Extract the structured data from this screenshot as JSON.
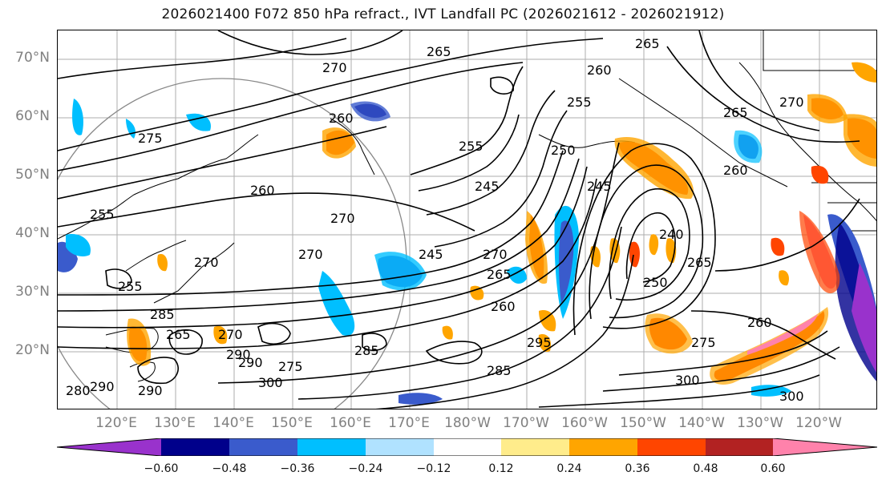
{
  "title": "2026021400 F072 850 hPa refract., IVT Landfall PC (2026021612 - 2026021912)",
  "lat_labels": [
    "70°N",
    "60°N",
    "50°N",
    "40°N",
    "30°N",
    "20°N"
  ],
  "lon_labels": [
    "120°E",
    "130°E",
    "140°E",
    "150°E",
    "160°E",
    "170°E",
    "180°W",
    "170°W",
    "160°W",
    "150°W",
    "140°W",
    "130°W",
    "120°W"
  ],
  "contour_labels": [
    "270",
    "265",
    "265",
    "260",
    "255",
    "275",
    "260",
    "255",
    "245",
    "260",
    "250",
    "245",
    "240",
    "265",
    "270",
    "255",
    "270",
    "265",
    "285",
    "270",
    "245",
    "250",
    "260",
    "270",
    "275",
    "285",
    "300",
    "260",
    "265",
    "295",
    "270",
    "300",
    "285",
    "290",
    "290",
    "270",
    "260",
    "255",
    "275",
    "265",
    "300",
    "290",
    "290",
    "280"
  ],
  "colorbar": {
    "colors": [
      "#9932cc",
      "#00008b",
      "#3a5bcc",
      "#00bfff",
      "#b0e2ff",
      "#ffffff",
      "#ffec8b",
      "#ffa500",
      "#ff4500",
      "#b22222",
      "#ff82ab"
    ],
    "ticks": [
      "−0.60",
      "−0.48",
      "−0.36",
      "−0.24",
      "−0.12",
      "0.12",
      "0.24",
      "0.36",
      "0.48",
      "0.60"
    ]
  }
}
